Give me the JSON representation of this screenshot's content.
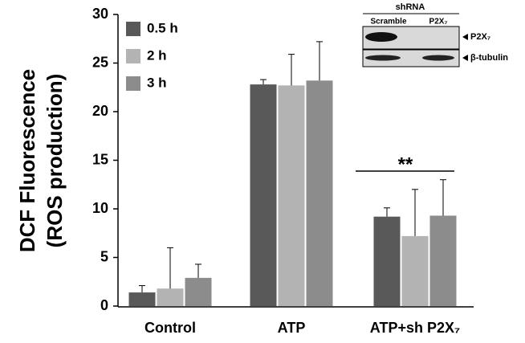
{
  "chart_data": {
    "type": "bar",
    "ylabel": [
      "DCF Fluorescence",
      "(ROS production)"
    ],
    "categories": [
      "Control",
      "ATP",
      "ATP+sh P2X₇"
    ],
    "series": [
      {
        "name": "0.5 h",
        "color": "#595959",
        "values": [
          1.4,
          22.8,
          9.2
        ],
        "errors": [
          0.7,
          0.5,
          0.9
        ]
      },
      {
        "name": "2 h",
        "color": "#b3b3b3",
        "values": [
          1.8,
          22.7,
          7.2
        ],
        "errors": [
          4.2,
          3.2,
          4.8
        ]
      },
      {
        "name": "3 h",
        "color": "#8c8c8c",
        "values": [
          2.9,
          23.2,
          9.3
        ],
        "errors": [
          1.4,
          4.0,
          3.7
        ]
      }
    ],
    "ylim": [
      0,
      30
    ],
    "yticks": [
      0,
      5,
      10,
      15,
      20,
      25,
      30
    ],
    "annotation": "**",
    "inset": {
      "title": "shRNA",
      "lanes": [
        "Scramble",
        "P2X₇"
      ],
      "bands": [
        "P2X₇",
        "β-tubulin"
      ]
    }
  }
}
